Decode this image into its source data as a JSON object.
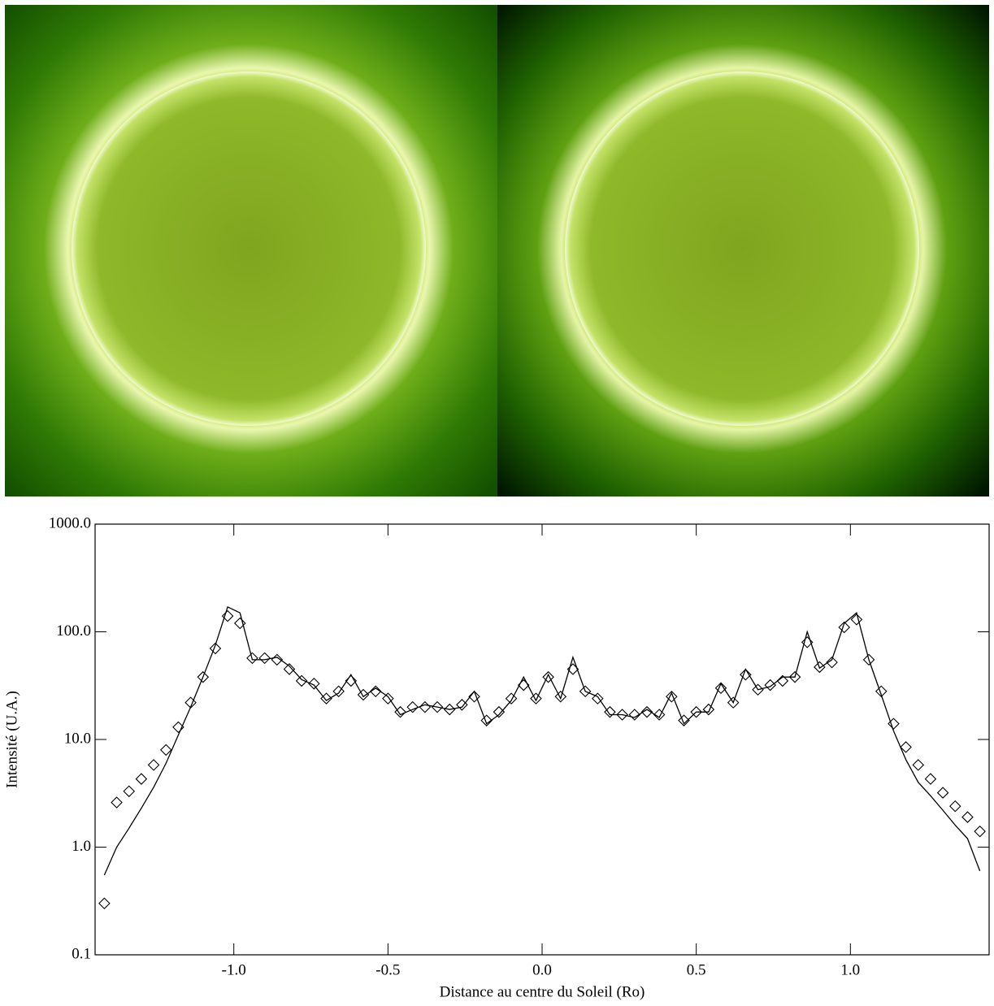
{
  "chart_data": {
    "type": "line",
    "xlabel": "Distance au centre du Soleil (Ro)",
    "ylabel": "Intensité (U.A.)",
    "x": [
      -1.42,
      -1.38,
      -1.34,
      -1.3,
      -1.26,
      -1.22,
      -1.18,
      -1.14,
      -1.1,
      -1.06,
      -1.02,
      -0.98,
      -0.94,
      -0.9,
      -0.86,
      -0.82,
      -0.78,
      -0.74,
      -0.7,
      -0.66,
      -0.62,
      -0.58,
      -0.54,
      -0.5,
      -0.46,
      -0.42,
      -0.38,
      -0.34,
      -0.3,
      -0.26,
      -0.22,
      -0.18,
      -0.14,
      -0.1,
      -0.06,
      -0.02,
      0.02,
      0.06,
      0.1,
      0.14,
      0.18,
      0.22,
      0.26,
      0.3,
      0.34,
      0.38,
      0.42,
      0.46,
      0.5,
      0.54,
      0.58,
      0.62,
      0.66,
      0.7,
      0.74,
      0.78,
      0.82,
      0.86,
      0.9,
      0.94,
      0.98,
      1.02,
      1.06,
      1.1,
      1.14,
      1.18,
      1.22,
      1.26,
      1.3,
      1.34,
      1.38,
      1.42
    ],
    "series": [
      {
        "color": "#000000",
        "marker": "none",
        "values": [
          0.55,
          1.0,
          1.5,
          2.3,
          3.6,
          6.0,
          11,
          20,
          38,
          75,
          170,
          150,
          55,
          55,
          58,
          48,
          36,
          32,
          23,
          27,
          40,
          25,
          30,
          25,
          17,
          19,
          21,
          20,
          19,
          20,
          28,
          14,
          17,
          23,
          38,
          23,
          40,
          24,
          58,
          28,
          25,
          17,
          17,
          16,
          19,
          16,
          27,
          14,
          18,
          18,
          33,
          22,
          45,
          29,
          31,
          38,
          38,
          100,
          46,
          55,
          120,
          150,
          55,
          26,
          12,
          6.5,
          4.0,
          3.0,
          2.2,
          1.6,
          1.2,
          0.6
        ]
      },
      {
        "color": "#000000",
        "marker": "diamond",
        "values": [
          0.3,
          2.6,
          3.3,
          4.3,
          5.8,
          8.0,
          13,
          22,
          38,
          70,
          140,
          120,
          57,
          57,
          55,
          45,
          35,
          33,
          24,
          28,
          35,
          26,
          28,
          24,
          18,
          20,
          20,
          20,
          19,
          21,
          25,
          15,
          18,
          24,
          32,
          24,
          38,
          25,
          45,
          28,
          24,
          18,
          17,
          17,
          18,
          17,
          25,
          15,
          18,
          19,
          30,
          22,
          40,
          29,
          32,
          35,
          38,
          80,
          47,
          52,
          110,
          130,
          55,
          28,
          14,
          8.5,
          5.8,
          4.3,
          3.2,
          2.4,
          1.9,
          1.4
        ]
      }
    ],
    "xlim": [
      -1.45,
      1.45
    ],
    "xticks": [
      {
        "value": -1.0,
        "label": "-1.0"
      },
      {
        "value": -0.5,
        "label": "-0.5"
      },
      {
        "value": 0.0,
        "label": "0.0"
      },
      {
        "value": 0.5,
        "label": "0.5"
      },
      {
        "value": 1.0,
        "label": "1.0"
      }
    ],
    "ylim": [
      0.1,
      1000
    ],
    "yticks": [
      0.1,
      {
        "value": 1,
        "label": "1.0"
      },
      {
        "value": 10,
        "label": "10.0"
      },
      {
        "value": 100,
        "label": "100.0"
      },
      {
        "value": 1000,
        "label": "1000.0"
      }
    ],
    "yscale": "log"
  }
}
